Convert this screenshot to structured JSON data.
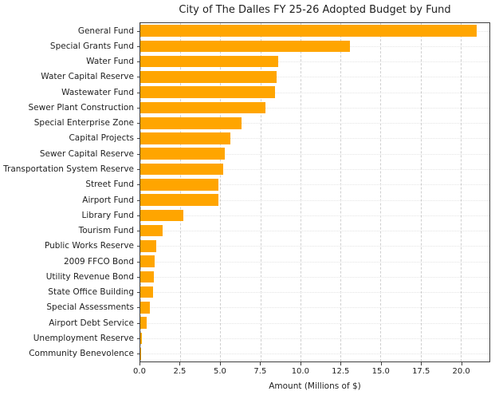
{
  "chart_data": {
    "type": "bar",
    "orientation": "horizontal",
    "title": "City of The Dalles FY 25-26 Adopted Budget by Fund",
    "xlabel": "Amount (Millions of $)",
    "ylabel": "",
    "xlim": [
      0,
      21.8
    ],
    "xticks": [
      0.0,
      2.5,
      5.0,
      7.5,
      10.0,
      12.5,
      15.0,
      17.5,
      20.0
    ],
    "grid": true,
    "legend": false,
    "bar_color": "#FFA500",
    "categories": [
      "General Fund",
      "Special Grants Fund",
      "Water Fund",
      "Water Capital Reserve",
      "Wastewater Fund",
      "Sewer Plant Construction",
      "Special Enterprise Zone",
      "Capital Projects",
      "Sewer Capital Reserve",
      "Transportation System Reserve",
      "Street Fund",
      "Airport Fund",
      "Library Fund",
      "Tourism Fund",
      "Public Works Reserve",
      "2009 FFCO Bond",
      "Utility Revenue Bond",
      "State Office Building",
      "Special Assessments",
      "Airport Debt Service",
      "Unemployment Reserve",
      "Community Benevolence"
    ],
    "values": [
      21.0,
      13.1,
      8.6,
      8.5,
      8.4,
      7.8,
      6.3,
      5.6,
      5.3,
      5.2,
      4.9,
      4.9,
      2.7,
      1.4,
      1.0,
      0.9,
      0.85,
      0.8,
      0.6,
      0.4,
      0.1,
      0.05
    ]
  }
}
